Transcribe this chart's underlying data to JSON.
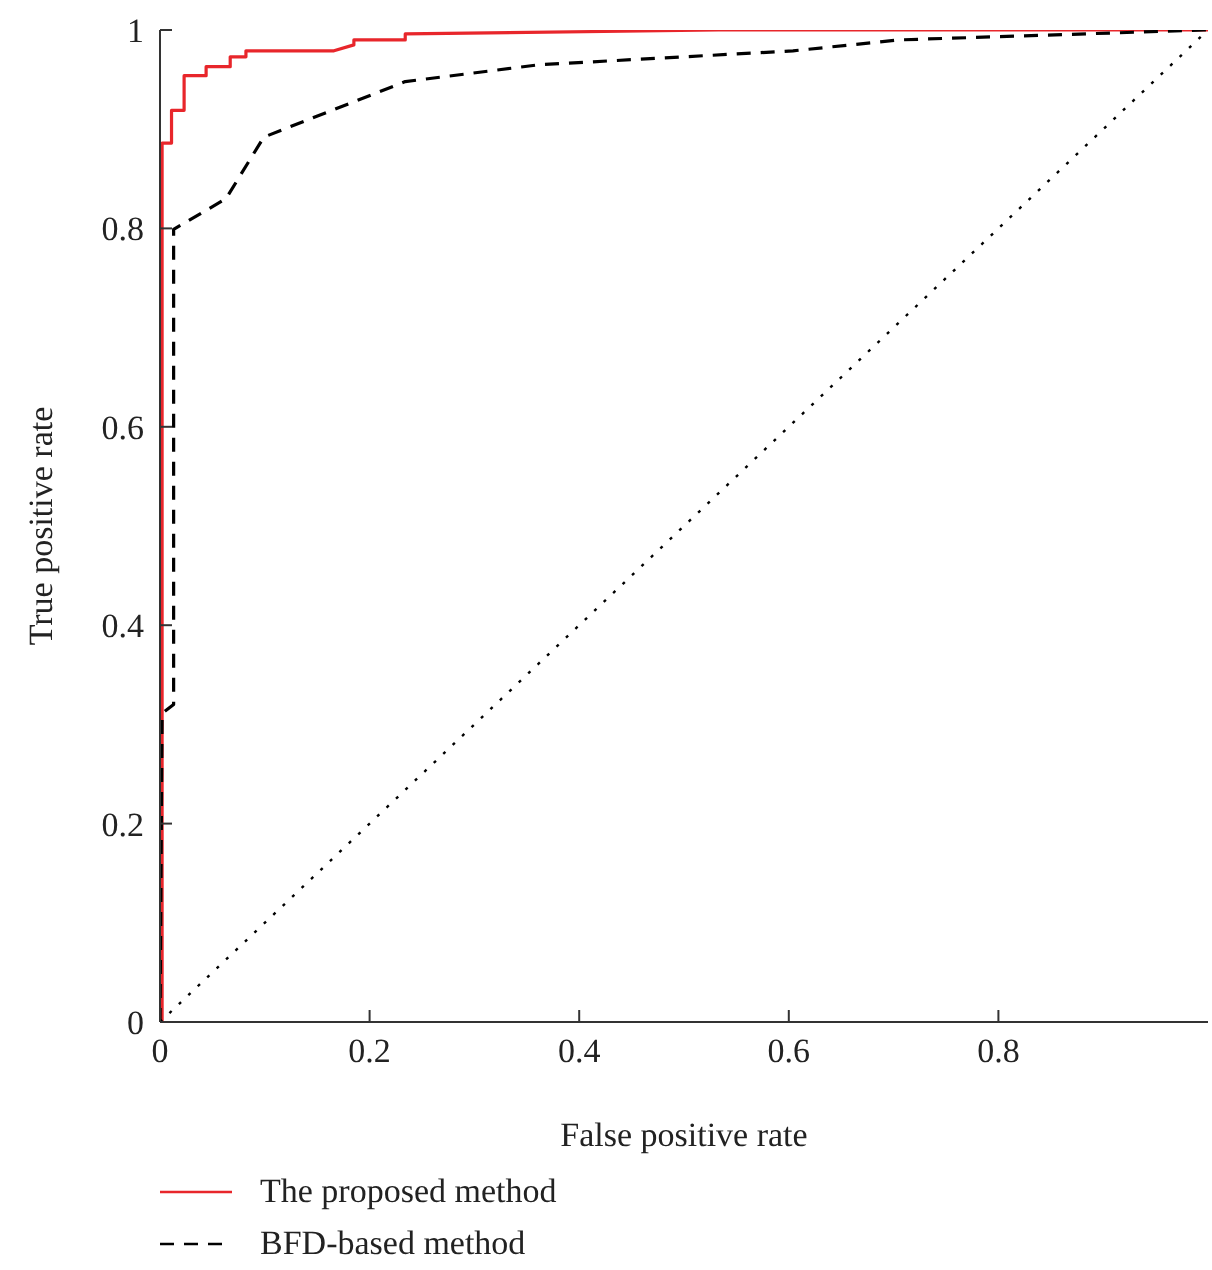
{
  "chart_data": {
    "type": "line",
    "xlabel": "False positive rate",
    "ylabel": "True positive rate",
    "xlim": [
      0,
      1
    ],
    "ylim": [
      0,
      1
    ],
    "xticks": [
      0,
      0.2,
      0.4,
      0.6,
      0.8
    ],
    "yticks": [
      0,
      0.2,
      0.4,
      0.6,
      0.8,
      1
    ],
    "grid": false,
    "legend": "bottom left",
    "marker": "none",
    "series": [
      {
        "name": "The proposed method",
        "color": "#e8262b",
        "line_style": "solid",
        "x": [
          0,
          0.002,
          0.002,
          0.011,
          0.011,
          0.023,
          0.023,
          0.044,
          0.044,
          0.067,
          0.067,
          0.082,
          0.082,
          0.166,
          0.185,
          0.185,
          0.234,
          0.234,
          0.533,
          1
        ],
        "values": [
          0,
          0,
          0.886,
          0.886,
          0.919,
          0.919,
          0.954,
          0.954,
          0.963,
          0.963,
          0.973,
          0.973,
          0.979,
          0.979,
          0.985,
          0.99,
          0.99,
          0.996,
          1,
          1
        ]
      },
      {
        "name": "BFD-based method",
        "color": "#000000",
        "line_style": "dashed",
        "x": [
          0,
          0.002,
          0.013,
          0.013,
          0.063,
          0.099,
          0.234,
          0.362,
          0.604,
          0.705,
          0.996,
          1
        ],
        "values": [
          0,
          0.311,
          0.32,
          0.799,
          0.83,
          0.892,
          0.948,
          0.965,
          0.979,
          0.99,
          1,
          1
        ]
      },
      {
        "color": "#000000",
        "line_style": "dotted",
        "x": [
          0,
          1
        ],
        "values": [
          0,
          1
        ]
      }
    ]
  }
}
